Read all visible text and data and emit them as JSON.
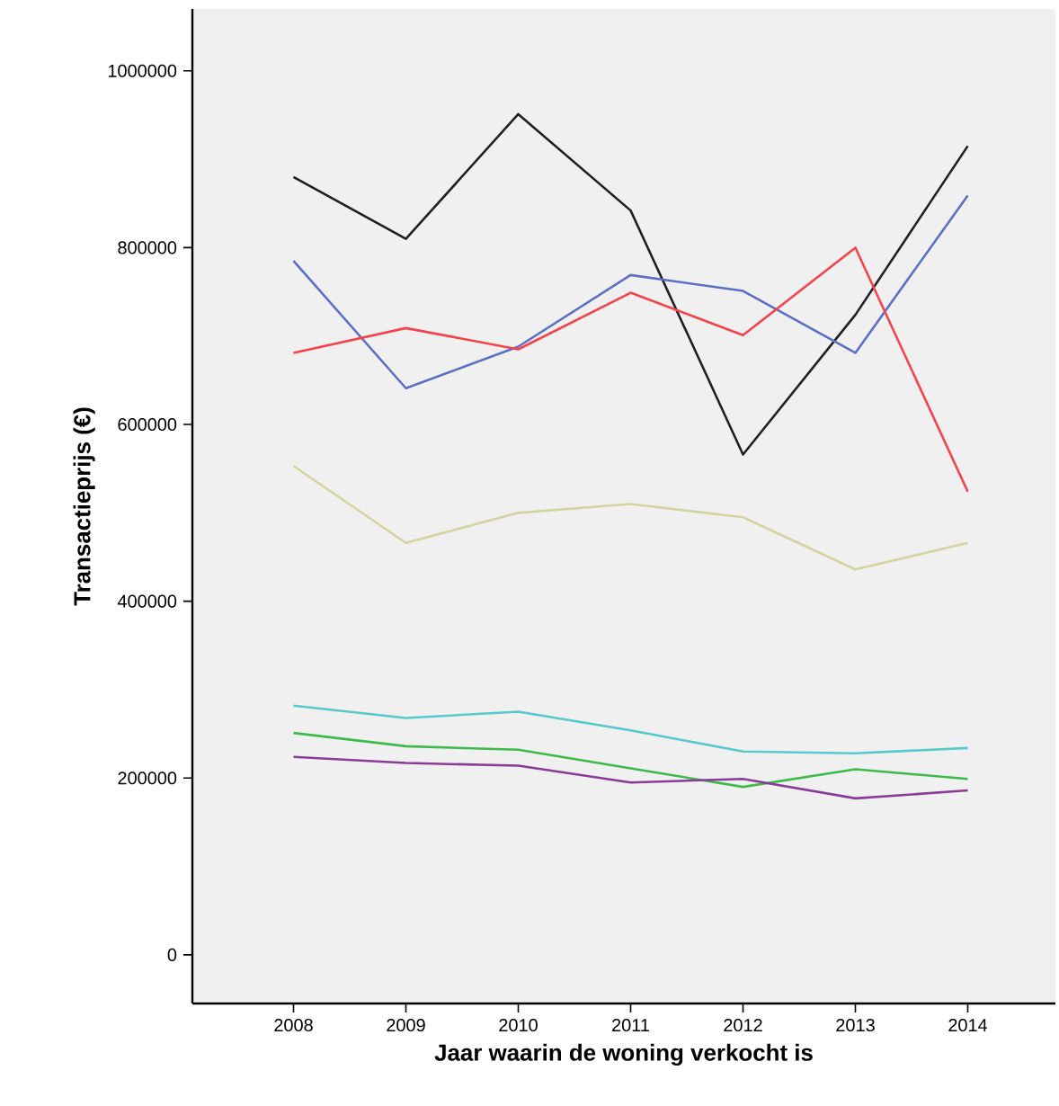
{
  "chart_data": {
    "type": "line",
    "xlabel": "Jaar waarin de woning verkocht is",
    "ylabel": "Transactieprijs (€)",
    "categories": [
      "2008",
      "2009",
      "2010",
      "2011",
      "2012",
      "2013",
      "2014"
    ],
    "ylim": [
      -55000,
      1070000
    ],
    "yticks": [
      0,
      200000,
      400000,
      600000,
      800000,
      1000000
    ],
    "grid": false,
    "marker": "none",
    "line_style": "solid",
    "series": [
      {
        "color": "#1f1f1f",
        "values": [
          880000,
          810000,
          951000,
          842000,
          566000,
          724000,
          915000
        ]
      },
      {
        "color": "#5b6fc4",
        "values": [
          785000,
          641000,
          688000,
          769000,
          751000,
          681000,
          859000
        ]
      },
      {
        "color": "#f5424a",
        "values": [
          681000,
          709000,
          685000,
          749000,
          701000,
          800000,
          524000
        ]
      },
      {
        "color": "#d6d3a0",
        "values": [
          553000,
          466000,
          500000,
          510000,
          495000,
          436000,
          466000
        ]
      },
      {
        "color": "#55c9cc",
        "values": [
          282000,
          268000,
          275000,
          254000,
          230000,
          228000,
          234000
        ]
      },
      {
        "color": "#3dbb4a",
        "values": [
          251000,
          236000,
          232000,
          211000,
          190000,
          210000,
          199000
        ]
      },
      {
        "color": "#8a3b97",
        "values": [
          224000,
          217000,
          214000,
          195000,
          199000,
          177000,
          186000
        ]
      }
    ]
  }
}
